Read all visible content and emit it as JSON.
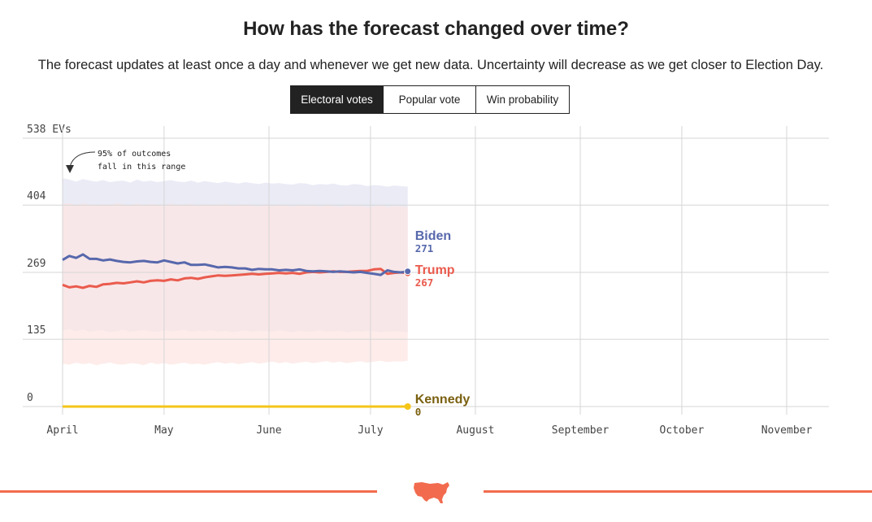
{
  "header": {
    "title": "How has the forecast changed over time?",
    "subtitle": "The forecast updates at least once a day and whenever we get new data. Uncertainty will decrease as we get closer to Election Day."
  },
  "tabs": [
    {
      "label": "Electoral votes",
      "active": true
    },
    {
      "label": "Popular vote",
      "active": false
    },
    {
      "label": "Win probability",
      "active": false
    }
  ],
  "footer": {
    "icon": "us-map-icon"
  },
  "colors": {
    "biden": "#5768ac",
    "trump": "#ea5b4d",
    "kennedy": "#f5c518",
    "kennedy_label": "#7a6010",
    "band_blue": "#e9eaf4",
    "band_red": "#fce5e3",
    "band_overlap": "#ecdde3",
    "grid": "#d6d6d6",
    "footer": "#f26b4e"
  },
  "chart_data": {
    "type": "line",
    "title": "How has the forecast changed over time?",
    "y_axis_label": "538 EVs",
    "ylim": [
      0,
      538
    ],
    "y_ticks": [
      {
        "value": 538,
        "label": "538 EVs"
      },
      {
        "value": 404,
        "label": "404"
      },
      {
        "value": 269,
        "label": "269"
      },
      {
        "value": 135,
        "label": "135"
      },
      {
        "value": 0,
        "label": "0"
      }
    ],
    "x_domain_days": [
      0,
      220
    ],
    "x_ticks": [
      {
        "label": "April",
        "day": 0
      },
      {
        "label": "May",
        "day": 30
      },
      {
        "label": "June",
        "day": 61
      },
      {
        "label": "July",
        "day": 91
      },
      {
        "label": "August",
        "day": 122
      },
      {
        "label": "September",
        "day": 153
      },
      {
        "label": "October",
        "day": 183
      },
      {
        "label": "November",
        "day": 214
      }
    ],
    "annotation": {
      "lines": [
        "95% of outcomes",
        "fall in this range"
      ]
    },
    "x_days": [
      0,
      2,
      4,
      6,
      8,
      10,
      12,
      14,
      16,
      18,
      20,
      22,
      24,
      26,
      28,
      30,
      32,
      34,
      36,
      38,
      40,
      42,
      44,
      46,
      48,
      50,
      52,
      54,
      56,
      58,
      60,
      62,
      64,
      66,
      68,
      70,
      72,
      74,
      76,
      78,
      80,
      82,
      84,
      86,
      88,
      90,
      92,
      94,
      96,
      98,
      100,
      102
    ],
    "series": [
      {
        "name": "Biden",
        "latest": "271",
        "values": [
          294,
          302,
          298,
          305,
          296,
          296,
          293,
          295,
          292,
          290,
          289,
          291,
          292,
          290,
          289,
          293,
          290,
          287,
          289,
          284,
          284,
          285,
          282,
          279,
          280,
          279,
          277,
          277,
          274,
          276,
          275,
          275,
          273,
          274,
          273,
          275,
          272,
          271,
          272,
          271,
          270,
          271,
          270,
          269,
          270,
          268,
          266,
          264,
          273,
          270,
          269,
          271
        ],
        "band_upper": [
          458,
          455,
          451,
          456,
          453,
          451,
          454,
          450,
          452,
          453,
          449,
          455,
          451,
          453,
          450,
          452,
          454,
          451,
          450,
          453,
          449,
          452,
          450,
          448,
          451,
          449,
          447,
          450,
          448,
          446,
          449,
          447,
          448,
          446,
          445,
          448,
          447,
          444,
          446,
          445,
          447,
          444,
          443,
          446,
          445,
          442,
          444,
          443,
          441,
          443,
          442,
          441
        ],
        "band_lower": [
          153,
          155,
          151,
          154,
          150,
          152,
          153,
          149,
          151,
          154,
          150,
          152,
          153,
          151,
          150,
          153,
          151,
          152,
          154,
          150,
          152,
          151,
          153,
          150,
          152,
          149,
          151,
          153,
          150,
          152,
          151,
          150,
          153,
          151,
          149,
          152,
          150,
          151,
          153,
          150,
          151,
          152,
          149,
          151,
          150,
          152,
          151,
          149,
          150,
          151,
          150,
          149
        ]
      },
      {
        "name": "Trump",
        "latest": "267",
        "values": [
          244,
          239,
          241,
          238,
          242,
          240,
          245,
          246,
          248,
          247,
          249,
          251,
          249,
          252,
          253,
          252,
          255,
          253,
          257,
          258,
          256,
          259,
          261,
          263,
          262,
          263,
          264,
          265,
          266,
          265,
          266,
          267,
          268,
          267,
          268,
          266,
          269,
          270,
          269,
          270,
          271,
          270,
          270,
          271,
          272,
          272,
          275,
          276,
          266,
          268,
          269,
          267
        ],
        "band_upper": [
          406,
          408,
          404,
          407,
          405,
          403,
          406,
          404,
          408,
          405,
          403,
          407,
          404,
          406,
          405,
          403,
          407,
          404,
          405,
          406,
          402,
          405,
          404,
          403,
          406,
          402,
          404,
          405,
          403,
          401,
          404,
          402,
          405,
          403,
          401,
          404,
          402,
          403,
          401,
          404,
          402,
          400,
          403,
          401,
          402,
          400,
          401,
          403,
          400,
          402,
          401,
          400
        ],
        "band_lower": [
          86,
          84,
          88,
          85,
          87,
          83,
          86,
          88,
          85,
          84,
          87,
          86,
          83,
          88,
          85,
          87,
          84,
          86,
          88,
          85,
          86,
          84,
          87,
          89,
          86,
          88,
          85,
          87,
          89,
          86,
          88,
          90,
          87,
          89,
          86,
          88,
          90,
          87,
          89,
          91,
          88,
          90,
          87,
          89,
          91,
          88,
          90,
          92,
          89,
          91,
          90,
          92
        ]
      },
      {
        "name": "Kennedy",
        "latest": "0",
        "values": [
          0,
          0,
          0,
          0,
          0,
          0,
          0,
          0,
          0,
          0,
          0,
          0,
          0,
          0,
          0,
          0,
          0,
          0,
          0,
          0,
          0,
          0,
          0,
          0,
          0,
          0,
          0,
          0,
          0,
          0,
          0,
          0,
          0,
          0,
          0,
          0,
          0,
          0,
          0,
          0,
          0,
          0,
          0,
          0,
          0,
          0,
          0,
          0,
          0,
          0,
          0,
          0
        ]
      }
    ]
  }
}
